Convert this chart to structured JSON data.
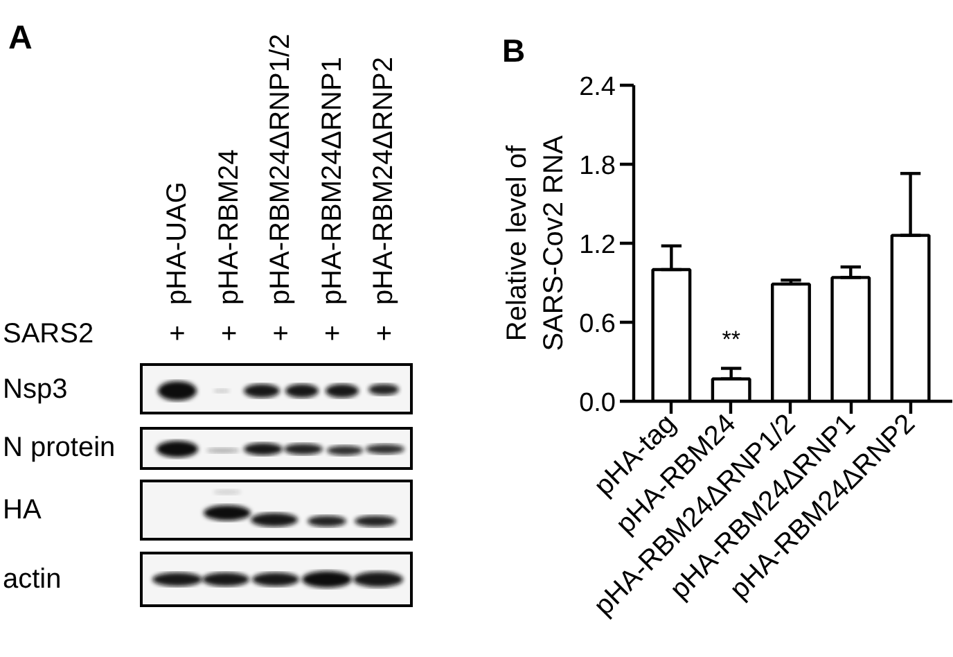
{
  "chart_data": [
    {
      "type": "other",
      "title": "A",
      "categories": [
        "pHA-UAG",
        "pHA-RBM24",
        "pHA-RBM24ΔRNP1/2",
        "pHA-RBM24ΔRNP1",
        "pHA-RBM24ΔRNP2"
      ],
      "y_categories": [
        "SARS2",
        "Nsp3",
        "N protein",
        "HA",
        "actin"
      ],
      "annotations": [
        "+",
        "+",
        "+",
        "+",
        "+"
      ]
    },
    {
      "type": "bar",
      "title": "B",
      "ylabel": "Relative level of\nSARS-Cov2 RNA",
      "categories": [
        "pHA-tag",
        "pHA-RBM24",
        "pHA-RBM24ΔRNP1/2",
        "pHA-RBM24ΔRNP1",
        "pHA-RBM24ΔRNP2"
      ],
      "values": [
        1.0,
        0.17,
        0.89,
        0.94,
        1.26
      ],
      "errors": [
        [
          1.0,
          1.18
        ],
        [
          0.17,
          0.25
        ],
        [
          0.89,
          0.92
        ],
        [
          0.94,
          1.02
        ],
        [
          1.26,
          1.73
        ]
      ],
      "color": "#ffffff",
      "ylim": [
        0,
        2.4
      ],
      "yticks": [
        {
          "value": 0,
          "label": "0.0"
        },
        0.6,
        1.2,
        1.8,
        2.4
      ],
      "annotations": [
        {
          "text": "**",
          "x": "pHA-RBM24",
          "y": 0.25
        }
      ]
    }
  ]
}
